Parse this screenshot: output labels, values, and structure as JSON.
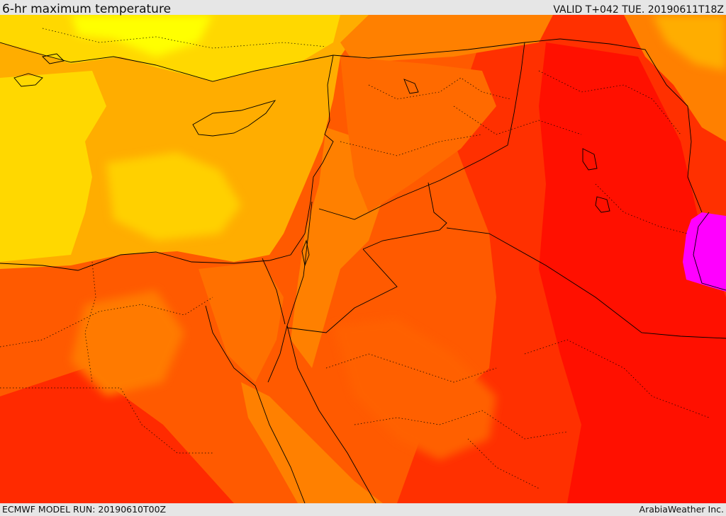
{
  "header": {
    "title": "6-hr maximum temperature",
    "valid_time": "VALID T+042 TUE. 20190611T18Z"
  },
  "footer": {
    "model_run": "ECMWF MODEL RUN: 20190610T00Z",
    "credit": "ArabiaWeather Inc."
  },
  "map": {
    "field": "6-hr maximum temperature",
    "palette": [
      "#ffff00",
      "#ffd800",
      "#ffad00",
      "#ff8000",
      "#ff5a00",
      "#ff3000",
      "#ff0000",
      "#ff00ff"
    ],
    "land_boundary_color": "#000000"
  }
}
